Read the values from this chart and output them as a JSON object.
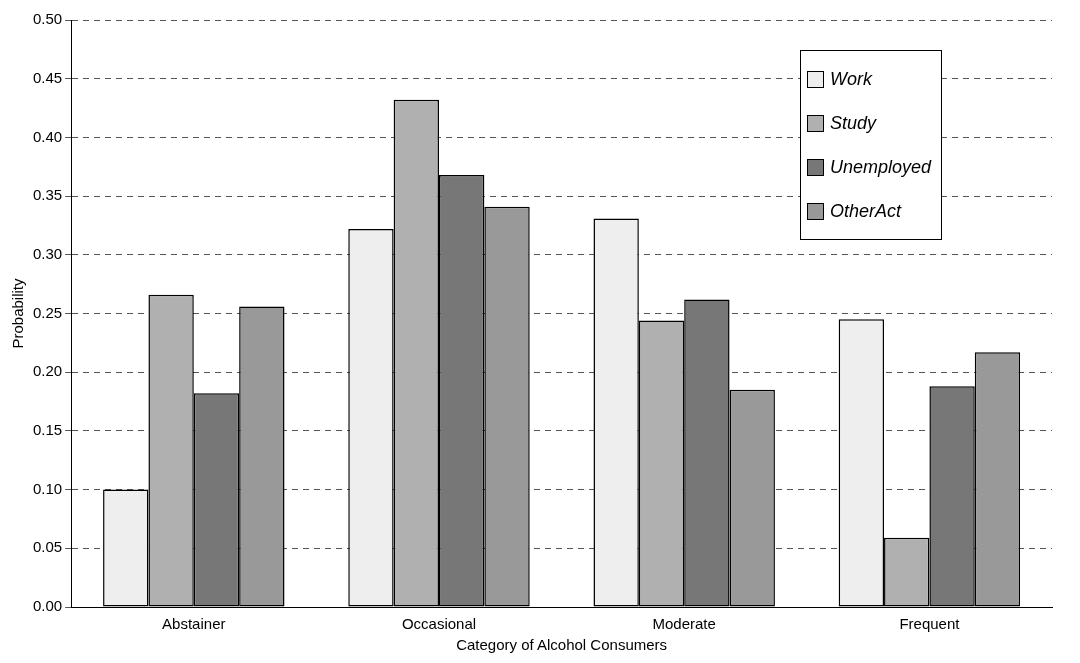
{
  "chart_data": {
    "type": "bar",
    "xlabel": "Category of Alcohol Consumers",
    "ylabel": "Probability",
    "categories": [
      "Abstainer",
      "Occasional",
      "Moderate",
      "Frequent"
    ],
    "series": [
      {
        "name": "Work",
        "color": "#eeeeee",
        "values": [
          0.1,
          0.322,
          0.331,
          0.245
        ]
      },
      {
        "name": "Study",
        "color": "#b0b0b0",
        "values": [
          0.266,
          0.432,
          0.244,
          0.059
        ]
      },
      {
        "name": "Unemployed",
        "color": "#777777",
        "values": [
          0.182,
          0.368,
          0.262,
          0.188
        ]
      },
      {
        "name": "OtherAct",
        "color": "#999999",
        "values": [
          0.256,
          0.341,
          0.185,
          0.217
        ]
      }
    ],
    "ylim": [
      0,
      0.5
    ],
    "yticks": [
      {
        "value": 0,
        "label": "0.00"
      },
      {
        "value": 0.05,
        "label": "0.05"
      },
      {
        "value": 0.1,
        "label": "0.10"
      },
      {
        "value": 0.15,
        "label": "0.15"
      },
      {
        "value": 0.2,
        "label": "0.20"
      },
      {
        "value": 0.25,
        "label": "0.25"
      },
      {
        "value": 0.3,
        "label": "0.30"
      },
      {
        "value": 0.35,
        "label": "0.35"
      },
      {
        "value": 0.4,
        "label": "0.40"
      },
      {
        "value": 0.45,
        "label": "0.45"
      },
      {
        "value": 0.5,
        "label": "0.50"
      }
    ],
    "grid": "y",
    "legend": "top right"
  }
}
